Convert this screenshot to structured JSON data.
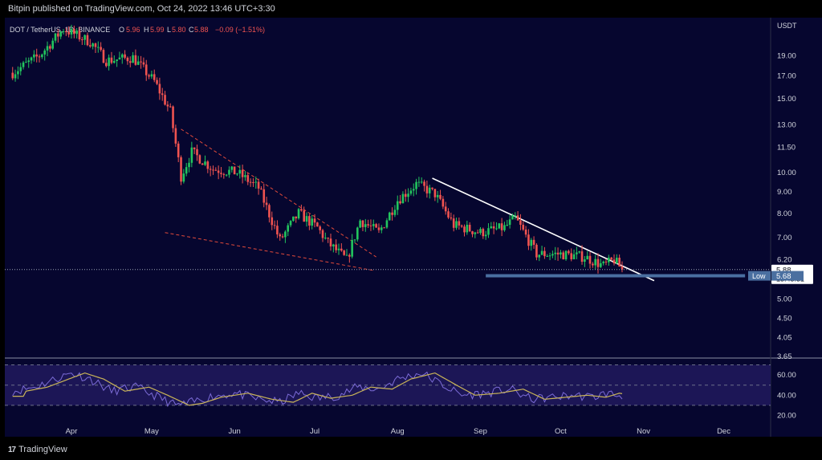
{
  "header": {
    "published_text": "Bitpin published on TradingView.com, Oct 24, 2022 13:46 UTC+3:30"
  },
  "legend": {
    "symbol": "DOT / TetherUS, 1D, BINANCE",
    "o_label": "O",
    "o_value": "5.96",
    "h_label": "H",
    "h_value": "5.99",
    "l_label": "L",
    "l_value": "5.80",
    "c_label": "C",
    "c_value": "5.88",
    "change": "−0.09 (−1.51%)"
  },
  "price_axis": {
    "currency": "USDT",
    "ticks": [
      "19.00",
      "17.00",
      "15.00",
      "13.00",
      "11.50",
      "10.00",
      "9.00",
      "8.00",
      "7.00",
      "6.20",
      "5.00",
      "4.50",
      "4.05",
      "3.65"
    ]
  },
  "last_price": {
    "value": "5.88",
    "countdown": "13:43:31"
  },
  "low_marker": {
    "label": "Low",
    "value": "5.68"
  },
  "rsi_axis": {
    "ticks": [
      "60.00",
      "40.00",
      "20.00"
    ]
  },
  "time_axis": {
    "ticks": [
      "Apr",
      "May",
      "Jun",
      "Jul",
      "Aug",
      "Sep",
      "Oct",
      "Nov",
      "Dec"
    ]
  },
  "footer": {
    "brand": "TradingView",
    "logo_mark": "17"
  },
  "colors": {
    "background": "#06062f",
    "up": "#26a69a",
    "up_bright": "#22c55e",
    "down": "#ef5350",
    "trendline": "#ffffff",
    "wedge": "#e04a3a",
    "low_line": "#4a6fa0",
    "rsi_line": "#7b6bd6",
    "rsi_ma": "#c9b458"
  },
  "chart_data": {
    "type": "candlestick",
    "symbol": "DOT / TetherUS",
    "interval": "1D",
    "exchange": "BINANCE",
    "y_scale": "log",
    "ylim": [
      3.65,
      22
    ],
    "x_ticks": [
      "Apr",
      "May",
      "Jun",
      "Jul",
      "Aug",
      "Sep",
      "Oct",
      "Nov",
      "Dec"
    ],
    "last_close": 5.88,
    "period_low": 5.68,
    "close_path": [
      {
        "date": "2022-03-10",
        "close": 17.3
      },
      {
        "date": "2022-03-20",
        "close": 19.0
      },
      {
        "date": "2022-03-29",
        "close": 22.0
      },
      {
        "date": "2022-04-08",
        "close": 20.5
      },
      {
        "date": "2022-04-14",
        "close": 18.5
      },
      {
        "date": "2022-04-24",
        "close": 18.8
      },
      {
        "date": "2022-05-02",
        "close": 16.5
      },
      {
        "date": "2022-05-08",
        "close": 14.0
      },
      {
        "date": "2022-05-12",
        "close": 9.8
      },
      {
        "date": "2022-05-16",
        "close": 11.2
      },
      {
        "date": "2022-05-24",
        "close": 10.2
      },
      {
        "date": "2022-06-02",
        "close": 10.0
      },
      {
        "date": "2022-06-10",
        "close": 9.2
      },
      {
        "date": "2022-06-18",
        "close": 6.9
      },
      {
        "date": "2022-06-25",
        "close": 8.0
      },
      {
        "date": "2022-07-02",
        "close": 7.4
      },
      {
        "date": "2022-07-06",
        "close": 6.8
      },
      {
        "date": "2022-07-13",
        "close": 6.2
      },
      {
        "date": "2022-07-18",
        "close": 7.7
      },
      {
        "date": "2022-07-25",
        "close": 7.2
      },
      {
        "date": "2022-08-01",
        "close": 8.6
      },
      {
        "date": "2022-08-08",
        "close": 9.4
      },
      {
        "date": "2022-08-15",
        "close": 8.9
      },
      {
        "date": "2022-08-22",
        "close": 7.5
      },
      {
        "date": "2022-09-01",
        "close": 7.2
      },
      {
        "date": "2022-09-10",
        "close": 7.4
      },
      {
        "date": "2022-09-14",
        "close": 7.8
      },
      {
        "date": "2022-09-22",
        "close": 6.4
      },
      {
        "date": "2022-10-01",
        "close": 6.4
      },
      {
        "date": "2022-10-10",
        "close": 6.3
      },
      {
        "date": "2022-10-17",
        "close": 6.0
      },
      {
        "date": "2022-10-21",
        "close": 6.2
      },
      {
        "date": "2022-10-24",
        "close": 5.88
      }
    ],
    "rsi": {
      "ylim": [
        18,
        72
      ],
      "levels": [
        70,
        50,
        30
      ],
      "points": [
        {
          "date": "2022-03-10",
          "value": 44
        },
        {
          "date": "2022-03-18",
          "value": 48
        },
        {
          "date": "2022-03-25",
          "value": 55
        },
        {
          "date": "2022-04-01",
          "value": 62
        },
        {
          "date": "2022-04-08",
          "value": 56
        },
        {
          "date": "2022-04-16",
          "value": 44
        },
        {
          "date": "2022-04-25",
          "value": 48
        },
        {
          "date": "2022-05-02",
          "value": 40
        },
        {
          "date": "2022-05-10",
          "value": 30
        },
        {
          "date": "2022-05-15",
          "value": 32
        },
        {
          "date": "2022-05-22",
          "value": 38
        },
        {
          "date": "2022-06-01",
          "value": 42
        },
        {
          "date": "2022-06-10",
          "value": 36
        },
        {
          "date": "2022-06-18",
          "value": 33
        },
        {
          "date": "2022-06-25",
          "value": 42
        },
        {
          "date": "2022-07-02",
          "value": 37
        },
        {
          "date": "2022-07-10",
          "value": 40
        },
        {
          "date": "2022-07-17",
          "value": 48
        },
        {
          "date": "2022-07-25",
          "value": 46
        },
        {
          "date": "2022-08-01",
          "value": 56
        },
        {
          "date": "2022-08-10",
          "value": 62
        },
        {
          "date": "2022-08-18",
          "value": 50
        },
        {
          "date": "2022-08-25",
          "value": 40
        },
        {
          "date": "2022-09-03",
          "value": 42
        },
        {
          "date": "2022-09-12",
          "value": 46
        },
        {
          "date": "2022-09-20",
          "value": 36
        },
        {
          "date": "2022-09-28",
          "value": 38
        },
        {
          "date": "2022-10-06",
          "value": 40
        },
        {
          "date": "2022-10-13",
          "value": 38
        },
        {
          "date": "2022-10-18",
          "value": 42
        },
        {
          "date": "2022-10-24",
          "value": 39
        }
      ]
    },
    "drawings": {
      "descending_trendline": [
        {
          "date": "2022-08-14",
          "price": 9.7
        },
        {
          "date": "2022-11-05",
          "price": 5.53
        }
      ],
      "wedge_upper": [
        {
          "date": "2022-05-12",
          "price": 12.7
        },
        {
          "date": "2022-07-24",
          "price": 6.3
        }
      ],
      "wedge_lower": [
        {
          "date": "2022-05-06",
          "price": 7.2
        },
        {
          "date": "2022-07-23",
          "price": 5.85
        }
      ],
      "horizontal_low": [
        {
          "date": "2022-09-03",
          "price": 5.68
        },
        {
          "date": "2022-12-09",
          "price": 5.68
        }
      ]
    }
  }
}
